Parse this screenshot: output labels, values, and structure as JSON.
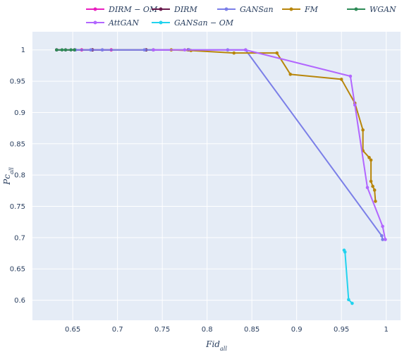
{
  "chart_data": {
    "type": "line",
    "xlabel": "Fid",
    "xlabel_sub": "all",
    "ylabel": "Pc",
    "ylabel_sub": "all",
    "xlim": [
      0.605,
      1.016
    ],
    "ylim": [
      0.568,
      1.029
    ],
    "x_ticks": [
      0.65,
      0.7,
      0.75,
      0.8,
      0.85,
      0.9,
      0.95,
      1
    ],
    "x_tick_labels": [
      "0.65",
      "0.7",
      "0.75",
      "0.8",
      "0.85",
      "0.9",
      "0.95",
      "1"
    ],
    "y_ticks": [
      0.6,
      0.65,
      0.7,
      0.75,
      0.8,
      0.85,
      0.9,
      0.95,
      1
    ],
    "y_tick_labels": [
      "0.6",
      "0.65",
      "0.7",
      "0.75",
      "0.8",
      "0.85",
      "0.9",
      "0.95",
      "1"
    ],
    "grid": true,
    "legend_position": "top",
    "series": [
      {
        "name": "DIRM − OM",
        "color": "#e91ebf",
        "points": [
          [
            0.632,
            1.0
          ],
          [
            0.642,
            1.0
          ],
          [
            0.652,
            1.0
          ],
          [
            0.66,
            1.0
          ],
          [
            0.672,
            1.0
          ],
          [
            0.683,
            1.0
          ],
          [
            0.693,
            1.0
          ]
        ]
      },
      {
        "name": "DIRM",
        "color": "#6a1b4d",
        "points": [
          [
            0.632,
            1.0
          ],
          [
            0.652,
            1.0
          ],
          [
            0.672,
            1.0
          ],
          [
            0.732,
            1.0
          ],
          [
            0.74,
            1.0
          ],
          [
            0.779,
            1.0
          ]
        ]
      },
      {
        "name": "GANSan",
        "color": "#7b7fe8",
        "points": [
          [
            0.653,
            1.0
          ],
          [
            0.67,
            1.0
          ],
          [
            0.683,
            1.0
          ],
          [
            0.73,
            1.0
          ],
          [
            0.78,
            1.0
          ],
          [
            0.823,
            1.0
          ],
          [
            0.843,
            1.0
          ],
          [
            0.995,
            0.703
          ],
          [
            0.996,
            0.697
          ]
        ]
      },
      {
        "name": "FM",
        "color": "#b8860b",
        "points": [
          [
            0.76,
            1.0
          ],
          [
            0.782,
            0.999
          ],
          [
            0.83,
            0.995
          ],
          [
            0.878,
            0.995
          ],
          [
            0.893,
            0.961
          ],
          [
            0.95,
            0.953
          ],
          [
            0.965,
            0.915
          ],
          [
            0.974,
            0.872
          ],
          [
            0.974,
            0.839
          ],
          [
            0.981,
            0.828
          ],
          [
            0.983,
            0.824
          ],
          [
            0.983,
            0.79
          ],
          [
            0.985,
            0.782
          ],
          [
            0.987,
            0.776
          ],
          [
            0.988,
            0.758
          ]
        ]
      },
      {
        "name": "WGAN",
        "color": "#2e8b57",
        "points": [
          [
            0.632,
            1.0
          ],
          [
            0.638,
            1.0
          ],
          [
            0.642,
            1.0
          ],
          [
            0.648,
            1.0
          ],
          [
            0.652,
            1.0
          ]
        ]
      },
      {
        "name": "AttGAN",
        "color": "#b266ff",
        "points": [
          [
            0.74,
            1.0
          ],
          [
            0.775,
            1.0
          ],
          [
            0.843,
            1.0
          ],
          [
            0.96,
            0.958
          ],
          [
            0.965,
            0.912
          ],
          [
            0.979,
            0.78
          ],
          [
            0.996,
            0.718
          ],
          [
            0.999,
            0.697
          ]
        ]
      },
      {
        "name": "GANSan − OM",
        "color": "#22d3ee",
        "points": [
          [
            0.953,
            0.68
          ],
          [
            0.954,
            0.677
          ],
          [
            0.958,
            0.601
          ],
          [
            0.962,
            0.595
          ]
        ]
      }
    ]
  }
}
